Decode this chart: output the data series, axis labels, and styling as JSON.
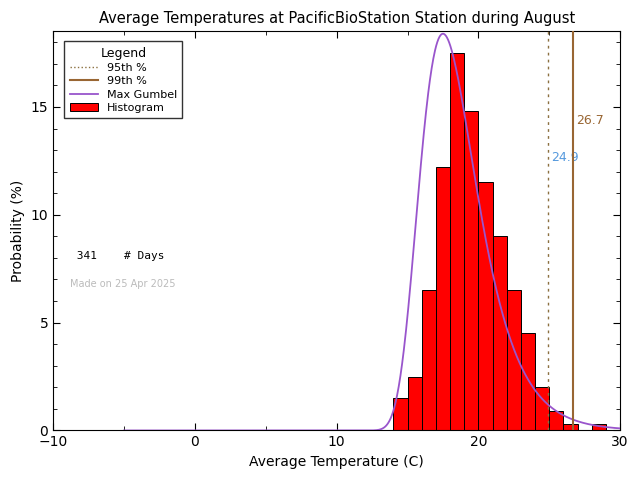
{
  "title": "Average Temperatures at PacificBioStation Station during August",
  "xlabel": "Average Temperature (C)",
  "ylabel": "Probability (%)",
  "n_days": 341,
  "pct95": 24.9,
  "pct95_label": "24.9",
  "pct95_color": "#5599DD",
  "pct95_line_color": "#8B7040",
  "pct99": 26.7,
  "pct99_label": "26.7",
  "pct99_color": "#996633",
  "hist_color": "#FF0000",
  "hist_edgecolor": "#000000",
  "gumbel_color": "#9955CC",
  "bg_color": "#FFFFFF",
  "xlim": [
    -10,
    30
  ],
  "ylim": [
    0,
    18.5
  ],
  "bin_centers": [
    14,
    15,
    16,
    17,
    18,
    19,
    20,
    21,
    22,
    23,
    24,
    25,
    26,
    28
  ],
  "bin_probs": [
    1.5,
    2.5,
    6.5,
    12.5,
    17.5,
    14.5,
    11.5,
    9.0,
    6.5,
    4.5,
    2.0,
    1.0,
    0.3,
    0.3
  ],
  "gumbel_mu": 17.5,
  "gumbel_beta": 2.0,
  "made_on": "Made on 25 Apr 2025",
  "xticks": [
    -10,
    0,
    10,
    20,
    30
  ],
  "yticks": [
    0,
    5,
    10,
    15
  ],
  "legend_title": "Legend",
  "legend_95_label": "95th %",
  "legend_99_label": "99th %",
  "legend_gumbel_label": "Max Gumbel",
  "legend_hist_label": "Histogram",
  "legend_days_label": "# Days"
}
